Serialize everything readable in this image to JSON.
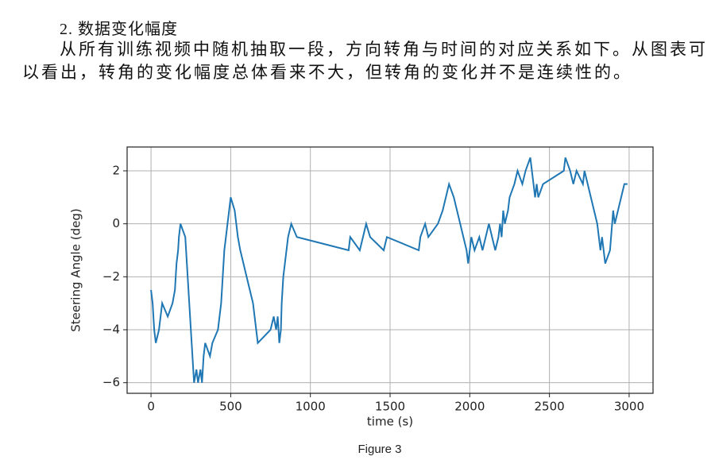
{
  "heading": "2. 数据变化幅度",
  "paragraph": "从所有训练视频中随机抽取一段，方向转角与时间的对应关系如下。从图表可以看出，转角的变化幅度总体看来不大，但转角的变化并不是连续性的。",
  "caption": "Figure 3",
  "chart_data": {
    "type": "line",
    "x_label": "time (s)",
    "y_label": "Steering Angle (deg)",
    "series": [
      {
        "color": "#1f77b4",
        "x": [
          0,
          10,
          15,
          20,
          30,
          50,
          60,
          70,
          105,
          135,
          150,
          155,
          160,
          170,
          175,
          185,
          215,
          220,
          225,
          230,
          235,
          240,
          245,
          250,
          255,
          260,
          265,
          270,
          285,
          295,
          310,
          320,
          330,
          340,
          370,
          385,
          420,
          440,
          450,
          460,
          470,
          480,
          490,
          500,
          525,
          535,
          545,
          560,
          580,
          600,
          620,
          640,
          650,
          660,
          670,
          750,
          770,
          785,
          795,
          805,
          815,
          820,
          830,
          840,
          850,
          860,
          880,
          915,
          1240,
          1250,
          1310,
          1330,
          1350,
          1375,
          1460,
          1480,
          1680,
          1690,
          1720,
          1740,
          1800,
          1830,
          1850,
          1870,
          1900,
          1920,
          1940,
          1960,
          1980,
          1990,
          2000,
          2010,
          2030,
          2060,
          2080,
          2100,
          2120,
          2140,
          2160,
          2180,
          2190,
          2200,
          2210,
          2220,
          2240,
          2250,
          2280,
          2300,
          2330,
          2350,
          2380,
          2400,
          2410,
          2420,
          2430,
          2460,
          2590,
          2600,
          2630,
          2650,
          2670,
          2710,
          2720,
          2740,
          2760,
          2780,
          2800,
          2810,
          2820,
          2830,
          2840,
          2850,
          2880,
          2900,
          2910,
          2930,
          2950,
          2970,
          2990
        ],
        "values": [
          -2.5,
          -3,
          -3.5,
          -4,
          -4.5,
          -4,
          -3.5,
          -3,
          -3.5,
          -3,
          -2.5,
          -2,
          -1.5,
          -1,
          -0.5,
          0,
          -0.5,
          -1,
          -1.5,
          -2,
          -2.5,
          -3,
          -3.5,
          -4,
          -4.5,
          -5,
          -5.5,
          -6,
          -5.5,
          -6,
          -5.5,
          -6,
          -5,
          -4.5,
          -5,
          -4.5,
          -4,
          -3,
          -2,
          -1,
          -0.5,
          0,
          0.5,
          1,
          0.5,
          0,
          -0.5,
          -1,
          -1.5,
          -2,
          -2.5,
          -3,
          -3.5,
          -4,
          -4.5,
          -4,
          -3.5,
          -4,
          -3.5,
          -4.5,
          -4,
          -3,
          -2,
          -1.5,
          -1,
          -0.5,
          0,
          -0.5,
          -1,
          -0.5,
          -1,
          -0.5,
          0,
          -0.5,
          -1,
          -0.5,
          -1,
          -0.5,
          0,
          -0.5,
          0,
          0.5,
          1,
          1.5,
          1,
          0.5,
          0,
          -0.5,
          -1,
          -1.5,
          -1,
          -0.5,
          -1,
          -0.5,
          -1,
          -0.5,
          0,
          -0.5,
          -1,
          -0.5,
          0,
          -0.5,
          0.5,
          0,
          0.5,
          1,
          1.5,
          2,
          1.5,
          2,
          2.5,
          1.5,
          1,
          1.5,
          1,
          1.5,
          2,
          2.5,
          2,
          1.5,
          2,
          1.5,
          2,
          1.5,
          1,
          0.5,
          0,
          -0.5,
          -1,
          -0.5,
          -1,
          -1.5,
          -1,
          0.5,
          0,
          0.5,
          1,
          1.5,
          1.5
        ]
      }
    ],
    "xlim": [
      -150,
      3150
    ],
    "ylim": [
      -6.4,
      2.9
    ],
    "xticks": [
      0,
      500,
      1000,
      1500,
      2000,
      2500,
      3000
    ],
    "yticks": [
      {
        "value": -6,
        "label": "−6"
      },
      {
        "value": -4,
        "label": "−4"
      },
      {
        "value": -2,
        "label": "−2"
      },
      0,
      2
    ],
    "grid": true
  }
}
